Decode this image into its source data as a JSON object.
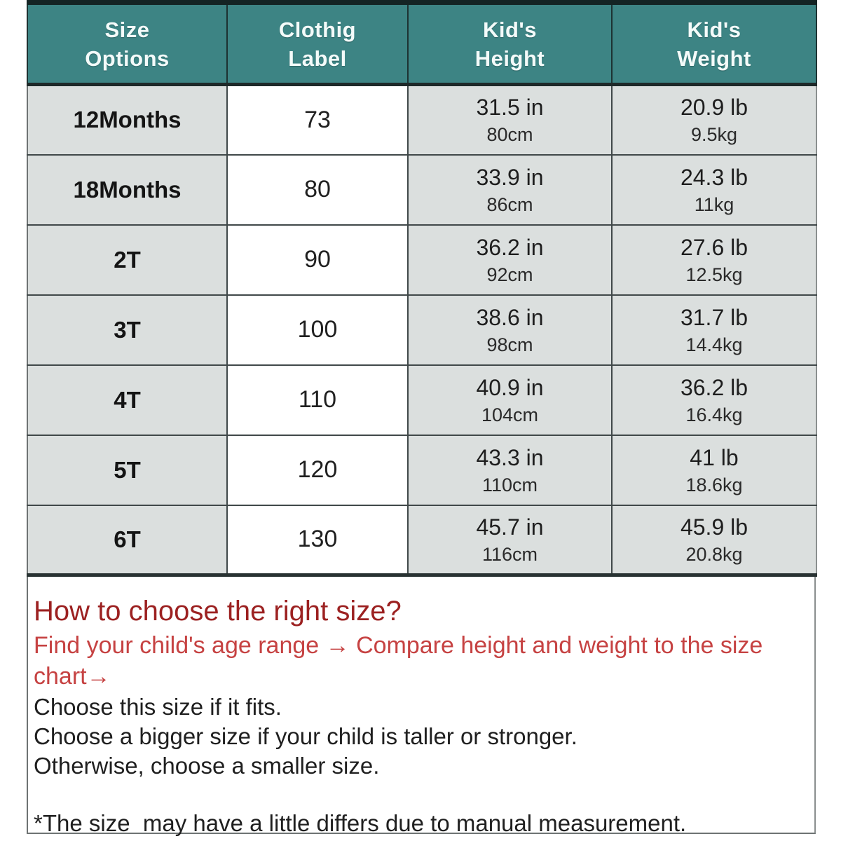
{
  "table": {
    "headers": [
      "Size\nOptions",
      "Clothig\nLabel",
      "Kid's\nHeight",
      "Kid's\nWeight"
    ],
    "rows": [
      {
        "size": "12Months",
        "label": "73",
        "height_in": "31.5 in",
        "height_cm": "80cm",
        "weight_lb": "20.9 lb",
        "weight_kg": "9.5kg"
      },
      {
        "size": "18Months",
        "label": "80",
        "height_in": "33.9 in",
        "height_cm": "86cm",
        "weight_lb": "24.3 lb",
        "weight_kg": "11kg"
      },
      {
        "size": "2T",
        "label": "90",
        "height_in": "36.2 in",
        "height_cm": "92cm",
        "weight_lb": "27.6 lb",
        "weight_kg": "12.5kg"
      },
      {
        "size": "3T",
        "label": "100",
        "height_in": "38.6 in",
        "height_cm": "98cm",
        "weight_lb": "31.7 lb",
        "weight_kg": "14.4kg"
      },
      {
        "size": "4T",
        "label": "110",
        "height_in": "40.9 in",
        "height_cm": "104cm",
        "weight_lb": "36.2 lb",
        "weight_kg": "16.4kg"
      },
      {
        "size": "5T",
        "label": "120",
        "height_in": "43.3 in",
        "height_cm": "110cm",
        "weight_lb": "41 lb",
        "weight_kg": "18.6kg"
      },
      {
        "size": "6T",
        "label": "130",
        "height_in": "45.7 in",
        "height_cm": "116cm",
        "weight_lb": "45.9 lb",
        "weight_kg": "20.8kg"
      }
    ]
  },
  "notes": {
    "heading": "How to choose the right size?",
    "red_text": "Find your child's age range → Compare height and weight to the size\nchart→",
    "line1": "Choose this size if it fits.",
    "line2": "Choose a bigger size if your child is taller or stronger.",
    "line3": "Otherwise, choose a smaller size.",
    "footnote": "*The size  may have a little differs due to manual measurement."
  },
  "colors": {
    "header_bg": "#3d8484",
    "header_text": "#f4fbfa",
    "row_gray": "#dbdfde",
    "row_white": "#ffffff",
    "heading_red": "#9c2121",
    "body_red": "#c64242",
    "border_dark": "#142424"
  }
}
